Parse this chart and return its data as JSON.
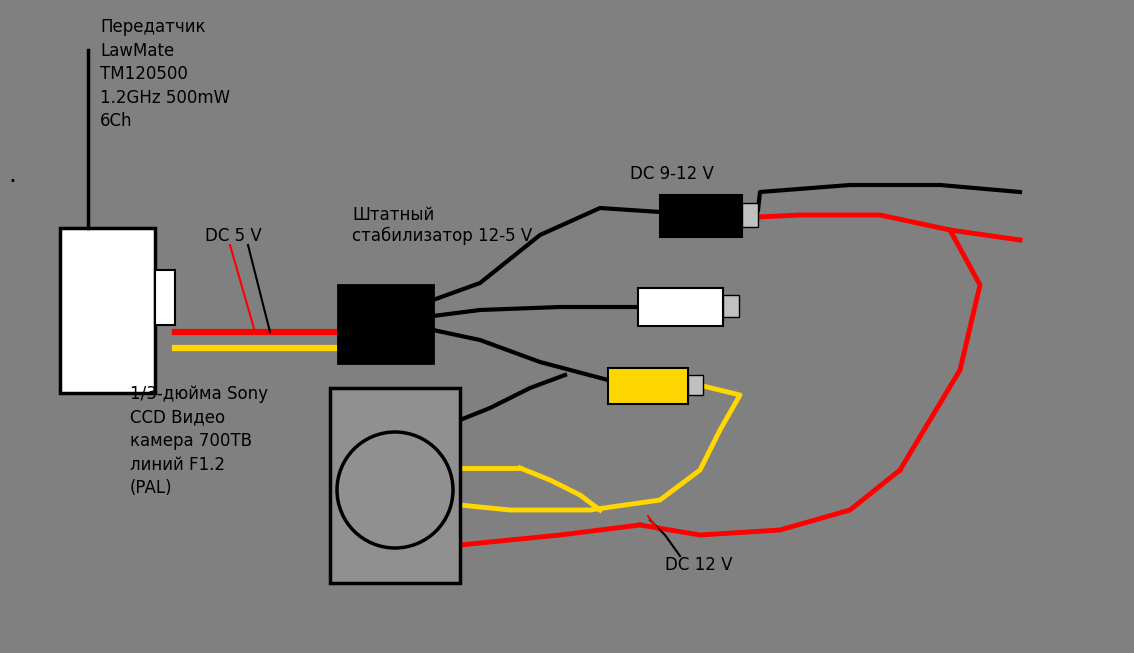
{
  "bg_color": "#808080",
  "fig_width": 11.34,
  "fig_height": 6.53,
  "transmitter_label": "Передатчик\nLawMate\nTM120500\n1.2GHz 500mW\n6Ch",
  "stabilizer_label": "Штатный\nстабилизатор 12-5 V",
  "dc5v_label": "DC 5 V",
  "dc912v_label": "DC 9-12 V",
  "dc12v_label": "DC 12 V",
  "camera_label": "1/3-дюйма Sony\nCCD Видео\nкамера 700ТВ\nлиний F1.2\n(PAL)",
  "fontsize": 12
}
